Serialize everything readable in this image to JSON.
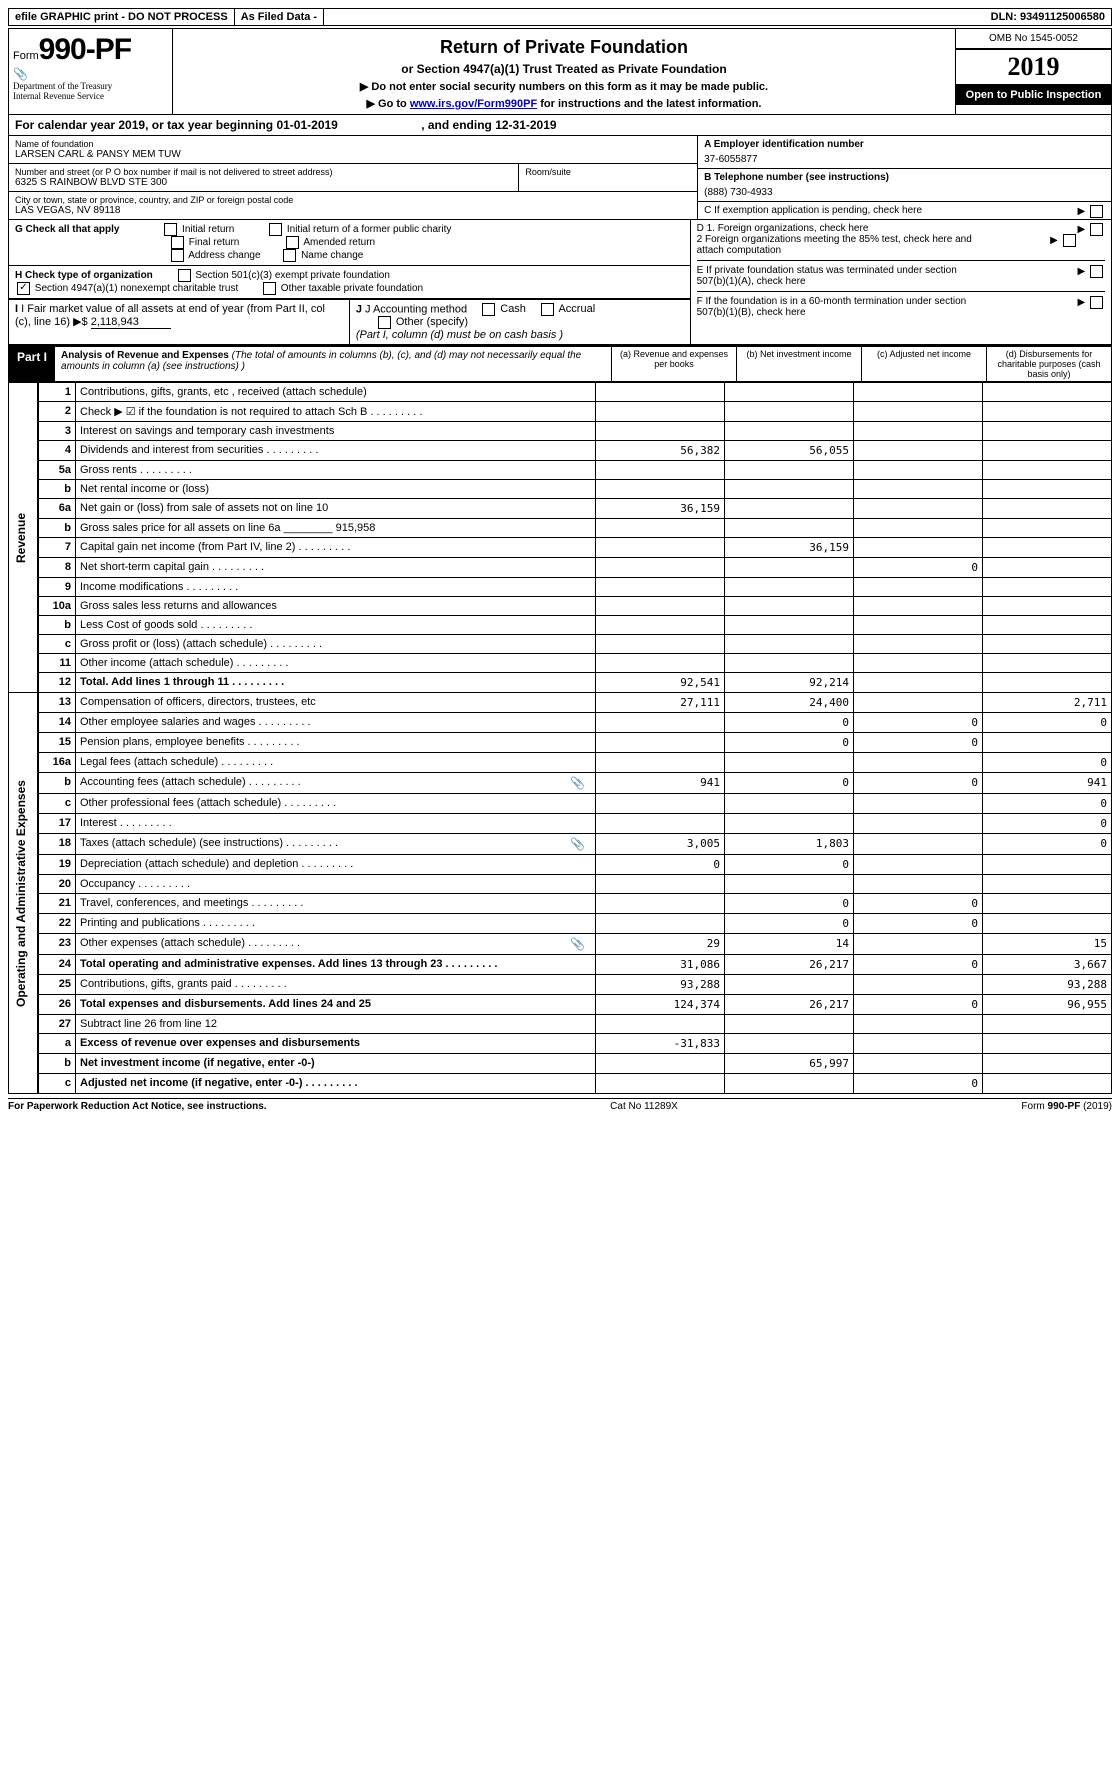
{
  "top": {
    "efile": "efile GRAPHIC print - DO NOT PROCESS",
    "asfiled": "As Filed Data -",
    "dln": "DLN: 93491125006580"
  },
  "header": {
    "form_word": "Form",
    "form_num": "990-PF",
    "dept": "Department of the Treasury\nInternal Revenue Service",
    "title": "Return of Private Foundation",
    "subtitle": "or Section 4947(a)(1) Trust Treated as Private Foundation",
    "warn1": "▶ Do not enter social security numbers on this form as it may be made public.",
    "warn2": "▶ Go to ",
    "link": "www.irs.gov/Form990PF",
    "warn2b": " for instructions and the latest information.",
    "omb": "OMB No 1545-0052",
    "year": "2019",
    "inspect": "Open to Public Inspection"
  },
  "calyear": {
    "pre": "For calendar year 2019, or tax year beginning ",
    "begin": "01-01-2019",
    "mid": ", and ending ",
    "end": "12-31-2019"
  },
  "info": {
    "name_lbl": "Name of foundation",
    "name": "LARSEN CARL & PANSY MEM TUW",
    "addr_lbl": "Number and street (or P O box number if mail is not delivered to street address)",
    "addr": "6325 S RAINBOW BLVD STE 300",
    "room_lbl": "Room/suite",
    "city_lbl": "City or town, state or province, country, and ZIP or foreign postal code",
    "city": "LAS VEGAS, NV 89118",
    "a_lbl": "A Employer identification number",
    "a_val": "37-6055877",
    "b_lbl": "B Telephone number (see instructions)",
    "b_val": "(888) 730-4933",
    "c_lbl": "C If exemption application is pending, check here",
    "g_lbl": "G Check all that apply",
    "g1": "Initial return",
    "g2": "Initial return of a former public charity",
    "g3": "Final return",
    "g4": "Amended return",
    "g5": "Address change",
    "g6": "Name change",
    "h_lbl": "H Check type of organization",
    "h1": "Section 501(c)(3) exempt private foundation",
    "h2": "Section 4947(a)(1) nonexempt charitable trust",
    "h3": "Other taxable private foundation",
    "i_lbl": "I Fair market value of all assets at end of year (from Part II, col (c), line 16) ▶$ ",
    "i_val": "2,118,943",
    "j_lbl": "J Accounting method",
    "j1": "Cash",
    "j2": "Accrual",
    "j3": "Other (specify)",
    "j_note": "(Part I, column (d) must be on cash basis )",
    "d1": "D 1. Foreign organizations, check here",
    "d2": "2 Foreign organizations meeting the 85% test, check here and attach computation",
    "e": "E If private foundation status was terminated under section 507(b)(1)(A), check here",
    "f": "F If the foundation is in a 60-month termination under section 507(b)(1)(B), check here"
  },
  "part": {
    "label": "Part I",
    "title": "Analysis of Revenue and Expenses",
    "note": " (The total of amounts in columns (b), (c), and (d) may not necessarily equal the amounts in column (a) (see instructions) )",
    "col_a": "(a) Revenue and expenses per books",
    "col_b": "(b) Net investment income",
    "col_c": "(c) Adjusted net income",
    "col_d": "(d) Disbursements for charitable purposes (cash basis only)"
  },
  "rows": [
    {
      "side": "Revenue",
      "no": "1",
      "desc": "Contributions, gifts, grants, etc , received (attach schedule)",
      "a": "",
      "b": "",
      "c": "",
      "d": ""
    },
    {
      "no": "2",
      "desc": "Check ▶ ☑ if the foundation is not required to attach Sch B",
      "dots": true,
      "a": "",
      "b": "",
      "c": "",
      "d": ""
    },
    {
      "no": "3",
      "desc": "Interest on savings and temporary cash investments",
      "a": "",
      "b": "",
      "c": "",
      "d": ""
    },
    {
      "no": "4",
      "desc": "Dividends and interest from securities",
      "dots": true,
      "a": "56,382",
      "b": "56,055",
      "c": "",
      "d": ""
    },
    {
      "no": "5a",
      "desc": "Gross rents",
      "dots": true,
      "a": "",
      "b": "",
      "c": "",
      "d": ""
    },
    {
      "no": "b",
      "desc": "Net rental income or (loss)",
      "a": "",
      "b": "",
      "c": "",
      "d": ""
    },
    {
      "no": "6a",
      "desc": "Net gain or (loss) from sale of assets not on line 10",
      "a": "36,159",
      "b": "",
      "c": "",
      "d": ""
    },
    {
      "no": "b",
      "desc": "Gross sales price for all assets on line 6a ________ 915,958",
      "a": "",
      "b": "",
      "c": "",
      "d": ""
    },
    {
      "no": "7",
      "desc": "Capital gain net income (from Part IV, line 2)",
      "dots": true,
      "a": "",
      "b": "36,159",
      "c": "",
      "d": ""
    },
    {
      "no": "8",
      "desc": "Net short-term capital gain",
      "dots": true,
      "a": "",
      "b": "",
      "c": "0",
      "d": ""
    },
    {
      "no": "9",
      "desc": "Income modifications",
      "dots": true,
      "a": "",
      "b": "",
      "c": "",
      "d": ""
    },
    {
      "no": "10a",
      "desc": "Gross sales less returns and allowances",
      "a": "",
      "b": "",
      "c": "",
      "d": ""
    },
    {
      "no": "b",
      "desc": "Less Cost of goods sold",
      "dots": true,
      "a": "",
      "b": "",
      "c": "",
      "d": ""
    },
    {
      "no": "c",
      "desc": "Gross profit or (loss) (attach schedule)",
      "dots": true,
      "a": "",
      "b": "",
      "c": "",
      "d": ""
    },
    {
      "no": "11",
      "desc": "Other income (attach schedule)",
      "dots": true,
      "a": "",
      "b": "",
      "c": "",
      "d": ""
    },
    {
      "no": "12",
      "desc": "Total. Add lines 1 through 11",
      "dots": true,
      "bold": true,
      "a": "92,541",
      "b": "92,214",
      "c": "",
      "d": ""
    },
    {
      "side": "Operating and Administrative Expenses",
      "no": "13",
      "desc": "Compensation of officers, directors, trustees, etc",
      "a": "27,111",
      "b": "24,400",
      "c": "",
      "d": "2,711"
    },
    {
      "no": "14",
      "desc": "Other employee salaries and wages",
      "dots": true,
      "a": "",
      "b": "0",
      "c": "0",
      "d": "0"
    },
    {
      "no": "15",
      "desc": "Pension plans, employee benefits",
      "dots": true,
      "a": "",
      "b": "0",
      "c": "0",
      "d": ""
    },
    {
      "no": "16a",
      "desc": "Legal fees (attach schedule)",
      "dots": true,
      "a": "",
      "b": "",
      "c": "",
      "d": "0"
    },
    {
      "no": "b",
      "desc": "Accounting fees (attach schedule)",
      "dots": true,
      "clip": true,
      "a": "941",
      "b": "0",
      "c": "0",
      "d": "941"
    },
    {
      "no": "c",
      "desc": "Other professional fees (attach schedule)",
      "dots": true,
      "a": "",
      "b": "",
      "c": "",
      "d": "0"
    },
    {
      "no": "17",
      "desc": "Interest",
      "dots": true,
      "a": "",
      "b": "",
      "c": "",
      "d": "0"
    },
    {
      "no": "18",
      "desc": "Taxes (attach schedule) (see instructions)",
      "dots": true,
      "clip": true,
      "a": "3,005",
      "b": "1,803",
      "c": "",
      "d": "0"
    },
    {
      "no": "19",
      "desc": "Depreciation (attach schedule) and depletion",
      "dots": true,
      "a": "0",
      "b": "0",
      "c": "",
      "d": ""
    },
    {
      "no": "20",
      "desc": "Occupancy",
      "dots": true,
      "a": "",
      "b": "",
      "c": "",
      "d": ""
    },
    {
      "no": "21",
      "desc": "Travel, conferences, and meetings",
      "dots": true,
      "a": "",
      "b": "0",
      "c": "0",
      "d": ""
    },
    {
      "no": "22",
      "desc": "Printing and publications",
      "dots": true,
      "a": "",
      "b": "0",
      "c": "0",
      "d": ""
    },
    {
      "no": "23",
      "desc": "Other expenses (attach schedule)",
      "dots": true,
      "clip": true,
      "a": "29",
      "b": "14",
      "c": "",
      "d": "15"
    },
    {
      "no": "24",
      "desc": "Total operating and administrative expenses. Add lines 13 through 23",
      "dots": true,
      "bold": true,
      "a": "31,086",
      "b": "26,217",
      "c": "0",
      "d": "3,667"
    },
    {
      "no": "25",
      "desc": "Contributions, gifts, grants paid",
      "dots": true,
      "a": "93,288",
      "b": "",
      "c": "",
      "d": "93,288"
    },
    {
      "no": "26",
      "desc": "Total expenses and disbursements. Add lines 24 and 25",
      "bold": true,
      "a": "124,374",
      "b": "26,217",
      "c": "0",
      "d": "96,955"
    },
    {
      "no": "27",
      "desc": "Subtract line 26 from line 12",
      "a": "",
      "b": "",
      "c": "",
      "d": ""
    },
    {
      "no": "a",
      "desc": "Excess of revenue over expenses and disbursements",
      "bold": true,
      "a": "-31,833",
      "b": "",
      "c": "",
      "d": ""
    },
    {
      "no": "b",
      "desc": "Net investment income (if negative, enter -0-)",
      "bold": true,
      "a": "",
      "b": "65,997",
      "c": "",
      "d": ""
    },
    {
      "no": "c",
      "desc": "Adjusted net income (if negative, enter -0-)",
      "dots": true,
      "bold": true,
      "a": "",
      "b": "",
      "c": "0",
      "d": ""
    }
  ],
  "footer": {
    "left": "For Paperwork Reduction Act Notice, see instructions.",
    "center": "Cat No 11289X",
    "right": "Form 990-PF (2019)"
  }
}
